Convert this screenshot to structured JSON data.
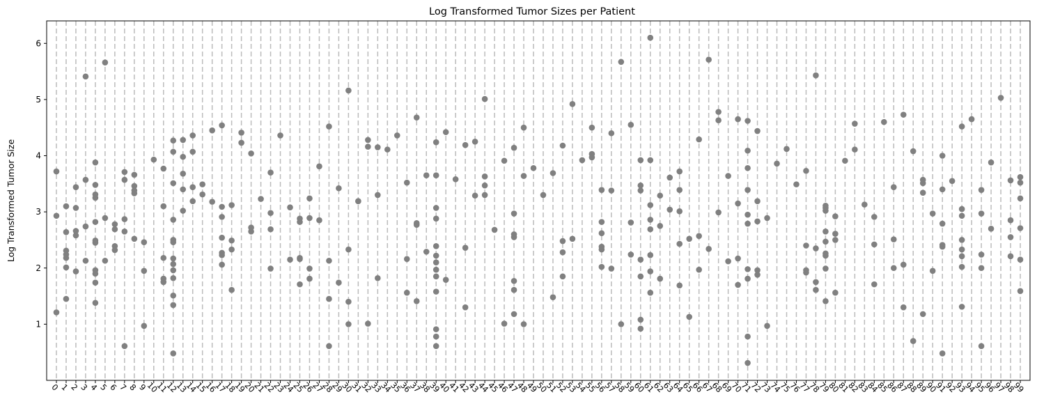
{
  "chart_data": {
    "type": "scatter",
    "title": "Log Transformed Tumor Sizes per Patient",
    "xlabel": "",
    "ylabel": "Log Transformed Tumor Size",
    "ylim": [
      0.0,
      6.4
    ],
    "yticks": [
      1,
      2,
      3,
      4,
      5,
      6
    ],
    "xlim": [
      -1,
      100
    ],
    "x_tick_labels": [
      "0",
      "1",
      "2",
      "3",
      "4",
      "5",
      "6",
      "7",
      "8",
      "9",
      "10",
      "11",
      "12",
      "13",
      "14",
      "15",
      "16",
      "17",
      "18",
      "19",
      "20",
      "21",
      "22",
      "23",
      "24",
      "25",
      "26",
      "27",
      "28",
      "29",
      "30",
      "31",
      "32",
      "33",
      "34",
      "35",
      "36",
      "37",
      "38",
      "39",
      "40",
      "41",
      "42",
      "43",
      "44",
      "45",
      "46",
      "47",
      "48",
      "49",
      "50",
      "51",
      "52",
      "53",
      "54",
      "55",
      "56",
      "57",
      "58",
      "59",
      "60",
      "61",
      "62",
      "63",
      "64",
      "65",
      "66",
      "67",
      "68",
      "69",
      "70",
      "71",
      "72",
      "73",
      "74",
      "75",
      "76",
      "77",
      "78",
      "79",
      "80",
      "81",
      "82",
      "83",
      "84",
      "85",
      "86",
      "87",
      "88",
      "89",
      "90",
      "91",
      "92",
      "93",
      "94",
      "95",
      "96",
      "97",
      "98",
      "99"
    ],
    "x_tick_rotation": -45,
    "marker_color": "#808080",
    "guide_line_color": "#bbbbbb",
    "guide_line_style": "dashed",
    "grid": false,
    "legend": false,
    "points": [
      [
        0,
        3.72
      ],
      [
        0,
        2.93
      ],
      [
        0,
        1.21
      ],
      [
        1,
        3.1
      ],
      [
        1,
        2.64
      ],
      [
        1,
        2.31
      ],
      [
        1,
        2.24
      ],
      [
        1,
        2.18
      ],
      [
        1,
        2.01
      ],
      [
        1,
        1.45
      ],
      [
        2,
        3.44
      ],
      [
        2,
        3.07
      ],
      [
        2,
        2.66
      ],
      [
        2,
        2.58
      ],
      [
        2,
        1.94
      ],
      [
        3,
        5.41
      ],
      [
        3,
        3.57
      ],
      [
        3,
        2.74
      ],
      [
        3,
        2.13
      ],
      [
        4,
        3.88
      ],
      [
        4,
        3.48
      ],
      [
        4,
        3.31
      ],
      [
        4,
        3.25
      ],
      [
        4,
        2.82
      ],
      [
        4,
        2.49
      ],
      [
        4,
        2.45
      ],
      [
        4,
        1.96
      ],
      [
        4,
        1.9
      ],
      [
        4,
        1.74
      ],
      [
        4,
        1.38
      ],
      [
        5,
        5.66
      ],
      [
        5,
        2.89
      ],
      [
        5,
        2.13
      ],
      [
        6,
        2.78
      ],
      [
        6,
        2.69
      ],
      [
        6,
        2.39
      ],
      [
        6,
        2.32
      ],
      [
        7,
        3.71
      ],
      [
        7,
        3.57
      ],
      [
        7,
        2.87
      ],
      [
        7,
        2.65
      ],
      [
        7,
        0.61
      ],
      [
        8,
        3.66
      ],
      [
        8,
        3.46
      ],
      [
        8,
        3.38
      ],
      [
        8,
        3.33
      ],
      [
        8,
        2.52
      ],
      [
        9,
        2.46
      ],
      [
        9,
        1.95
      ],
      [
        9,
        0.97
      ],
      [
        10,
        3.93
      ],
      [
        11,
        3.77
      ],
      [
        11,
        3.1
      ],
      [
        11,
        2.18
      ],
      [
        11,
        1.81
      ],
      [
        11,
        1.75
      ],
      [
        12,
        4.27
      ],
      [
        12,
        4.07
      ],
      [
        12,
        3.51
      ],
      [
        12,
        2.86
      ],
      [
        12,
        2.5
      ],
      [
        12,
        2.46
      ],
      [
        12,
        2.17
      ],
      [
        12,
        2.07
      ],
      [
        12,
        1.96
      ],
      [
        12,
        1.82
      ],
      [
        12,
        1.51
      ],
      [
        12,
        1.34
      ],
      [
        12,
        0.48
      ],
      [
        13,
        4.28
      ],
      [
        13,
        3.98
      ],
      [
        13,
        3.68
      ],
      [
        13,
        3.4
      ],
      [
        13,
        3.02
      ],
      [
        14,
        4.36
      ],
      [
        14,
        4.07
      ],
      [
        14,
        3.44
      ],
      [
        14,
        3.19
      ],
      [
        15,
        3.49
      ],
      [
        15,
        3.31
      ],
      [
        16,
        4.45
      ],
      [
        16,
        3.18
      ],
      [
        17,
        4.54
      ],
      [
        17,
        3.09
      ],
      [
        17,
        2.91
      ],
      [
        17,
        2.54
      ],
      [
        17,
        2.27
      ],
      [
        17,
        2.23
      ],
      [
        17,
        2.06
      ],
      [
        18,
        3.12
      ],
      [
        18,
        2.49
      ],
      [
        18,
        2.33
      ],
      [
        18,
        1.61
      ],
      [
        19,
        4.41
      ],
      [
        19,
        4.23
      ],
      [
        20,
        4.04
      ],
      [
        20,
        2.72
      ],
      [
        20,
        2.65
      ],
      [
        21,
        3.23
      ],
      [
        22,
        3.7
      ],
      [
        22,
        2.98
      ],
      [
        22,
        2.69
      ],
      [
        22,
        1.99
      ],
      [
        23,
        4.36
      ],
      [
        24,
        3.08
      ],
      [
        24,
        2.15
      ],
      [
        25,
        2.88
      ],
      [
        25,
        2.82
      ],
      [
        25,
        2.18
      ],
      [
        25,
        2.16
      ],
      [
        25,
        1.71
      ],
      [
        26,
        3.24
      ],
      [
        26,
        2.89
      ],
      [
        26,
        1.99
      ],
      [
        26,
        1.81
      ],
      [
        27,
        3.81
      ],
      [
        27,
        2.85
      ],
      [
        28,
        4.52
      ],
      [
        28,
        2.13
      ],
      [
        28,
        1.45
      ],
      [
        28,
        0.61
      ],
      [
        29,
        3.42
      ],
      [
        29,
        1.74
      ],
      [
        30,
        5.16
      ],
      [
        30,
        2.33
      ],
      [
        30,
        1.4
      ],
      [
        30,
        1.0
      ],
      [
        31,
        3.19
      ],
      [
        31,
        3.19
      ],
      [
        32,
        4.28
      ],
      [
        32,
        4.16
      ],
      [
        32,
        1.01
      ],
      [
        33,
        4.15
      ],
      [
        33,
        3.3
      ],
      [
        33,
        1.82
      ],
      [
        34,
        4.11
      ],
      [
        35,
        4.36
      ],
      [
        36,
        3.52
      ],
      [
        36,
        2.16
      ],
      [
        36,
        1.56
      ],
      [
        37,
        4.68
      ],
      [
        37,
        2.8
      ],
      [
        37,
        2.77
      ],
      [
        37,
        1.41
      ],
      [
        38,
        3.65
      ],
      [
        38,
        2.29
      ],
      [
        39,
        4.24
      ],
      [
        39,
        3.65
      ],
      [
        39,
        3.07
      ],
      [
        39,
        2.88
      ],
      [
        39,
        2.39
      ],
      [
        39,
        2.22
      ],
      [
        39,
        2.1
      ],
      [
        39,
        1.97
      ],
      [
        39,
        1.85
      ],
      [
        39,
        1.58
      ],
      [
        39,
        0.91
      ],
      [
        39,
        0.78
      ],
      [
        39,
        0.61
      ],
      [
        40,
        4.42
      ],
      [
        40,
        1.79
      ],
      [
        41,
        3.58
      ],
      [
        42,
        4.19
      ],
      [
        42,
        2.36
      ],
      [
        42,
        1.3
      ],
      [
        43,
        4.25
      ],
      [
        43,
        3.29
      ],
      [
        44,
        5.01
      ],
      [
        44,
        3.63
      ],
      [
        44,
        3.47
      ],
      [
        44,
        3.3
      ],
      [
        45,
        2.68
      ],
      [
        46,
        3.91
      ],
      [
        46,
        1.01
      ],
      [
        47,
        4.14
      ],
      [
        47,
        2.97
      ],
      [
        47,
        2.6
      ],
      [
        47,
        2.55
      ],
      [
        47,
        1.77
      ],
      [
        47,
        1.61
      ],
      [
        47,
        1.18
      ],
      [
        48,
        4.5
      ],
      [
        48,
        3.64
      ],
      [
        48,
        1.0
      ],
      [
        49,
        3.78
      ],
      [
        50,
        3.3
      ],
      [
        51,
        3.69
      ],
      [
        51,
        1.48
      ],
      [
        52,
        4.18
      ],
      [
        52,
        2.48
      ],
      [
        52,
        2.28
      ],
      [
        52,
        1.85
      ],
      [
        53,
        4.92
      ],
      [
        53,
        2.52
      ],
      [
        54,
        3.92
      ],
      [
        55,
        4.5
      ],
      [
        55,
        4.03
      ],
      [
        55,
        3.97
      ],
      [
        56,
        3.39
      ],
      [
        56,
        2.82
      ],
      [
        56,
        2.62
      ],
      [
        56,
        2.38
      ],
      [
        56,
        2.33
      ],
      [
        56,
        2.02
      ],
      [
        57,
        4.4
      ],
      [
        57,
        3.38
      ],
      [
        57,
        1.99
      ],
      [
        58,
        5.67
      ],
      [
        58,
        1.0
      ],
      [
        59,
        4.55
      ],
      [
        59,
        2.81
      ],
      [
        59,
        2.24
      ],
      [
        60,
        3.92
      ],
      [
        60,
        3.47
      ],
      [
        60,
        3.38
      ],
      [
        60,
        2.15
      ],
      [
        60,
        1.85
      ],
      [
        60,
        1.08
      ],
      [
        60,
        0.92
      ],
      [
        61,
        6.1
      ],
      [
        61,
        3.92
      ],
      [
        61,
        3.12
      ],
      [
        61,
        2.86
      ],
      [
        61,
        2.69
      ],
      [
        61,
        2.23
      ],
      [
        61,
        1.94
      ],
      [
        61,
        1.56
      ],
      [
        62,
        3.29
      ],
      [
        62,
        2.75
      ],
      [
        62,
        1.81
      ],
      [
        63,
        3.61
      ],
      [
        63,
        3.04
      ],
      [
        64,
        3.72
      ],
      [
        64,
        3.39
      ],
      [
        64,
        3.01
      ],
      [
        64,
        2.43
      ],
      [
        64,
        1.69
      ],
      [
        65,
        2.52
      ],
      [
        65,
        1.13
      ],
      [
        66,
        4.29
      ],
      [
        66,
        2.57
      ],
      [
        66,
        1.97
      ],
      [
        67,
        5.71
      ],
      [
        67,
        2.34
      ],
      [
        68,
        4.78
      ],
      [
        68,
        4.63
      ],
      [
        68,
        2.99
      ],
      [
        69,
        3.64
      ],
      [
        69,
        2.12
      ],
      [
        70,
        4.65
      ],
      [
        70,
        3.15
      ],
      [
        70,
        2.17
      ],
      [
        70,
        1.7
      ],
      [
        71,
        4.62
      ],
      [
        71,
        4.09
      ],
      [
        71,
        3.78
      ],
      [
        71,
        3.39
      ],
      [
        71,
        2.95
      ],
      [
        71,
        2.79
      ],
      [
        71,
        1.98
      ],
      [
        71,
        1.81
      ],
      [
        71,
        0.78
      ],
      [
        71,
        0.31
      ],
      [
        72,
        4.44
      ],
      [
        72,
        3.19
      ],
      [
        72,
        2.83
      ],
      [
        72,
        1.96
      ],
      [
        72,
        1.88
      ],
      [
        73,
        2.89
      ],
      [
        73,
        0.97
      ],
      [
        74,
        3.86
      ],
      [
        75,
        4.12
      ],
      [
        76,
        3.49
      ],
      [
        77,
        3.73
      ],
      [
        77,
        2.4
      ],
      [
        77,
        1.96
      ],
      [
        77,
        1.92
      ],
      [
        78,
        5.43
      ],
      [
        78,
        2.35
      ],
      [
        78,
        1.75
      ],
      [
        78,
        1.61
      ],
      [
        79,
        3.11
      ],
      [
        79,
        3.07
      ],
      [
        79,
        3.02
      ],
      [
        79,
        2.65
      ],
      [
        79,
        2.47
      ],
      [
        79,
        2.26
      ],
      [
        79,
        2.22
      ],
      [
        79,
        1.99
      ],
      [
        79,
        1.41
      ],
      [
        80,
        2.92
      ],
      [
        80,
        2.61
      ],
      [
        80,
        2.5
      ],
      [
        80,
        1.56
      ],
      [
        81,
        3.91
      ],
      [
        82,
        4.57
      ],
      [
        82,
        4.11
      ],
      [
        83,
        3.13
      ],
      [
        84,
        2.91
      ],
      [
        84,
        2.42
      ],
      [
        84,
        1.71
      ],
      [
        85,
        4.6
      ],
      [
        86,
        3.44
      ],
      [
        86,
        2.51
      ],
      [
        86,
        2.0
      ],
      [
        87,
        4.73
      ],
      [
        87,
        2.06
      ],
      [
        87,
        1.3
      ],
      [
        88,
        4.08
      ],
      [
        88,
        0.7
      ],
      [
        89,
        3.57
      ],
      [
        89,
        3.51
      ],
      [
        89,
        3.34
      ],
      [
        89,
        1.18
      ],
      [
        90,
        2.97
      ],
      [
        90,
        1.95
      ],
      [
        91,
        4.0
      ],
      [
        91,
        3.4
      ],
      [
        91,
        2.79
      ],
      [
        91,
        2.41
      ],
      [
        91,
        2.38
      ],
      [
        91,
        0.48
      ],
      [
        92,
        3.55
      ],
      [
        93,
        4.52
      ],
      [
        93,
        3.05
      ],
      [
        93,
        2.93
      ],
      [
        93,
        2.5
      ],
      [
        93,
        2.33
      ],
      [
        93,
        2.21
      ],
      [
        93,
        2.02
      ],
      [
        93,
        1.31
      ],
      [
        94,
        4.65
      ],
      [
        95,
        3.39
      ],
      [
        95,
        2.97
      ],
      [
        95,
        2.24
      ],
      [
        95,
        2.0
      ],
      [
        95,
        0.61
      ],
      [
        96,
        3.88
      ],
      [
        96,
        2.7
      ],
      [
        97,
        5.03
      ],
      [
        98,
        3.56
      ],
      [
        98,
        2.85
      ],
      [
        98,
        2.55
      ],
      [
        98,
        2.21
      ],
      [
        99,
        3.62
      ],
      [
        99,
        3.52
      ],
      [
        99,
        3.24
      ],
      [
        99,
        2.71
      ],
      [
        99,
        2.15
      ],
      [
        99,
        1.59
      ]
    ]
  }
}
